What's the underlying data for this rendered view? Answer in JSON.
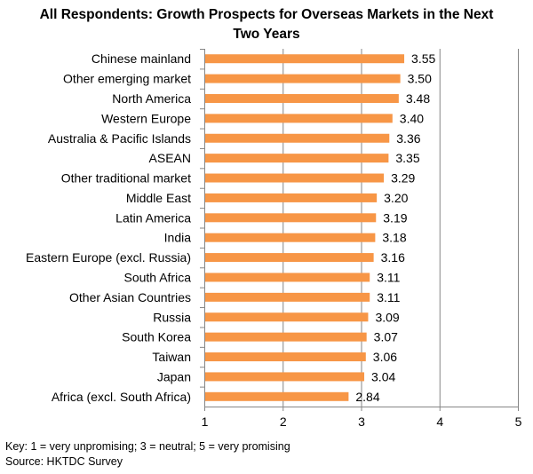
{
  "chart_data": {
    "type": "bar",
    "orientation": "horizontal",
    "title_line1": "All Respondents: Growth Prospects for Overseas Markets in the Next",
    "title_line2": "Two Years",
    "categories": [
      "Chinese mainland",
      "Other emerging market",
      "North America",
      "Western Europe",
      "Australia & Pacific Islands",
      "ASEAN",
      "Other traditional market",
      "Middle East",
      "Latin America",
      "India",
      "Eastern Europe (excl. Russia)",
      "South Africa",
      "Other Asian Countries",
      "Russia",
      "South Korea",
      "Taiwan",
      "Japan",
      "Africa (excl. South Africa)"
    ],
    "values": [
      3.55,
      3.5,
      3.48,
      3.4,
      3.36,
      3.35,
      3.29,
      3.2,
      3.19,
      3.18,
      3.16,
      3.11,
      3.11,
      3.09,
      3.07,
      3.06,
      3.04,
      2.84
    ],
    "value_labels": [
      "3.55",
      "3.50",
      "3.48",
      "3.40",
      "3.36",
      "3.35",
      "3.29",
      "3.20",
      "3.19",
      "3.18",
      "3.16",
      "3.11",
      "3.11",
      "3.09",
      "3.07",
      "3.06",
      "3.04",
      "2.84"
    ],
    "xlim": [
      1,
      5
    ],
    "xticks": [
      1,
      2,
      3,
      4,
      5
    ],
    "xtick_labels": [
      "1",
      "2",
      "3",
      "4",
      "5"
    ],
    "grid": true,
    "bar_color": "#F79646",
    "grid_color": "#868686"
  },
  "footnote": {
    "key": "Key: 1 = very unpromising; 3 = neutral; 5 = very promising",
    "source": "Source: HKTDC Survey"
  }
}
